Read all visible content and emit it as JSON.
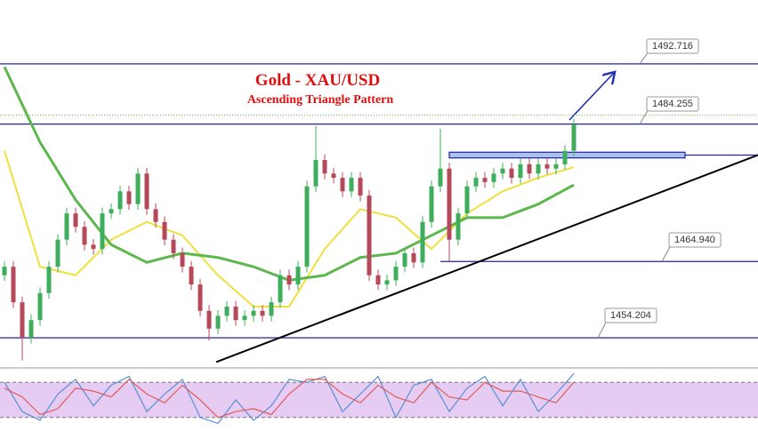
{
  "chart_data": {
    "type": "candlestick",
    "title": "Gold - XAU/USD",
    "subtitle": "Ascending Triangle Pattern",
    "xlim": [
      -0.5,
      84.7
    ],
    "ylim": [
      1450.1,
      1501.7
    ],
    "up_color": "#3fae5c",
    "down_color": "#b5485a",
    "level_color": "#2020a8",
    "open": [
      1463.0,
      1464.2,
      1459.2,
      1454.2,
      1456.7,
      1460.5,
      1464.2,
      1468.0,
      1471.7,
      1469.8,
      1467.3,
      1466.7,
      1471.7,
      1472.3,
      1474.8,
      1473.0,
      1477.3,
      1472.3,
      1470.5,
      1468.0,
      1466.1,
      1464.2,
      1461.7,
      1458.0,
      1455.5,
      1457.3,
      1458.6,
      1456.7,
      1457.3,
      1458.0,
      1457.3,
      1459.2,
      1463.0,
      1461.7,
      1464.2,
      1475.5,
      1479.2,
      1477.3,
      1476.7,
      1474.8,
      1476.7,
      1474.2,
      1463.0,
      1461.7,
      1462.3,
      1464.2,
      1466.1,
      1464.8,
      1470.5,
      1475.5,
      1478.0,
      1468.0,
      1471.7,
      1475.5,
      1476.7,
      1476.1,
      1477.3,
      1478.0,
      1476.7,
      1478.6,
      1477.3,
      1478.6,
      1478.0,
      1478.6,
      1480.5
    ],
    "high": [
      1465.0,
      1465.0,
      1460.0,
      1457.5,
      1461.3,
      1465.0,
      1468.8,
      1472.5,
      1472.5,
      1470.6,
      1468.1,
      1472.5,
      1473.1,
      1475.6,
      1475.6,
      1478.1,
      1478.1,
      1473.1,
      1471.3,
      1468.8,
      1466.9,
      1465.0,
      1462.5,
      1458.8,
      1458.1,
      1459.4,
      1459.4,
      1458.1,
      1458.8,
      1458.8,
      1460.0,
      1463.8,
      1463.8,
      1465.0,
      1476.3,
      1484.0,
      1480.0,
      1478.1,
      1477.5,
      1477.5,
      1477.5,
      1475.0,
      1463.8,
      1463.1,
      1465.0,
      1466.9,
      1466.9,
      1471.3,
      1476.3,
      1483.6,
      1478.8,
      1472.5,
      1476.3,
      1477.5,
      1477.5,
      1478.1,
      1478.8,
      1478.8,
      1479.4,
      1479.4,
      1479.4,
      1479.4,
      1479.4,
      1481.3,
      1485.0
    ],
    "low": [
      1462.2,
      1458.4,
      1451.0,
      1453.4,
      1455.9,
      1459.7,
      1463.4,
      1467.2,
      1469.0,
      1466.5,
      1465.9,
      1465.9,
      1470.9,
      1471.5,
      1472.2,
      1472.2,
      1471.5,
      1469.7,
      1467.2,
      1465.3,
      1463.4,
      1460.9,
      1457.2,
      1453.8,
      1454.7,
      1456.5,
      1455.9,
      1455.9,
      1456.5,
      1456.5,
      1456.5,
      1458.4,
      1460.9,
      1460.9,
      1463.4,
      1474.7,
      1476.5,
      1475.9,
      1474.0,
      1474.0,
      1473.4,
      1462.2,
      1460.9,
      1460.9,
      1461.5,
      1463.4,
      1464.0,
      1464.0,
      1469.7,
      1474.7,
      1465.0,
      1467.2,
      1470.9,
      1474.7,
      1475.3,
      1475.3,
      1476.5,
      1475.9,
      1475.9,
      1476.5,
      1476.5,
      1477.2,
      1477.2,
      1477.8,
      1479.7
    ],
    "close": [
      1464.2,
      1459.2,
      1454.2,
      1456.7,
      1460.5,
      1464.2,
      1468.0,
      1471.7,
      1469.8,
      1467.3,
      1466.7,
      1471.7,
      1472.3,
      1474.8,
      1473.0,
      1477.3,
      1472.3,
      1470.5,
      1468.0,
      1466.1,
      1464.2,
      1461.7,
      1458.0,
      1455.5,
      1457.3,
      1458.6,
      1456.7,
      1457.3,
      1458.0,
      1457.3,
      1459.2,
      1463.0,
      1461.7,
      1464.2,
      1475.5,
      1479.2,
      1477.3,
      1476.7,
      1474.8,
      1476.7,
      1474.2,
      1463.0,
      1461.7,
      1462.3,
      1464.2,
      1466.1,
      1464.8,
      1470.5,
      1475.5,
      1478.0,
      1468.0,
      1471.7,
      1475.5,
      1476.7,
      1476.1,
      1477.3,
      1478.0,
      1476.7,
      1478.6,
      1477.3,
      1478.6,
      1478.0,
      1478.6,
      1480.5,
      1484.2
    ],
    "ma_x": [
      0,
      4,
      8,
      12,
      16,
      20,
      24,
      28,
      32,
      36,
      40,
      44,
      48,
      52,
      56,
      60,
      64
    ],
    "moving_averages": [
      {
        "color": "#f0df3c",
        "values": [
          1480.5,
          1464.2,
          1463.0,
          1468.0,
          1470.5,
          1468.6,
          1463.0,
          1458.6,
          1458.6,
          1466.7,
          1472.3,
          1471.1,
          1466.7,
          1471.7,
          1474.8,
          1476.7,
          1478.2
        ]
      },
      {
        "color": "#5cb84c",
        "values": [
          1492.3,
          1481.7,
          1473.6,
          1467.3,
          1464.8,
          1466.1,
          1465.5,
          1464.2,
          1462.3,
          1463.0,
          1465.5,
          1466.1,
          1468.6,
          1471.1,
          1471.1,
          1473.0,
          1475.7
        ]
      }
    ],
    "levels": [
      1492.716,
      1484.255,
      {
        "value": 1464.94,
        "label": "1464.940"
      },
      1454.204
    ],
    "level_starts": [
      -0.5,
      -0.5,
      49,
      -0.5
    ],
    "zone": {
      "x": [
        50,
        76.5
      ],
      "y": [
        1479.5,
        1480.3
      ]
    },
    "trendline": {
      "x": [
        23.8,
        84.7
      ],
      "y": [
        1450.8,
        1479.9
      ]
    },
    "dotted_level": 1485.5,
    "oscillator": {
      "ylim": [
        0,
        100
      ],
      "levels": [
        20,
        80
      ],
      "x": [
        0,
        2,
        4,
        6,
        8,
        10,
        12,
        14,
        16,
        18,
        20,
        22,
        24,
        26,
        28,
        30,
        32,
        34,
        36,
        38,
        40,
        42,
        44,
        46,
        48,
        50,
        52,
        54,
        56,
        58,
        60,
        62,
        64
      ],
      "series": [
        {
          "color": "#5a8fd6",
          "values": [
            80,
            30,
            15,
            60,
            85,
            40,
            75,
            90,
            30,
            60,
            85,
            20,
            10,
            50,
            15,
            40,
            85,
            80,
            90,
            30,
            60,
            90,
            20,
            75,
            85,
            30,
            70,
            90,
            40,
            85,
            30,
            60,
            95
          ]
        },
        {
          "color": "#e05a5a",
          "values": [
            70,
            55,
            25,
            35,
            70,
            65,
            55,
            85,
            60,
            45,
            75,
            50,
            20,
            30,
            35,
            25,
            60,
            85,
            85,
            60,
            45,
            75,
            55,
            45,
            80,
            55,
            50,
            80,
            65,
            65,
            55,
            45,
            80
          ]
        }
      ]
    }
  }
}
